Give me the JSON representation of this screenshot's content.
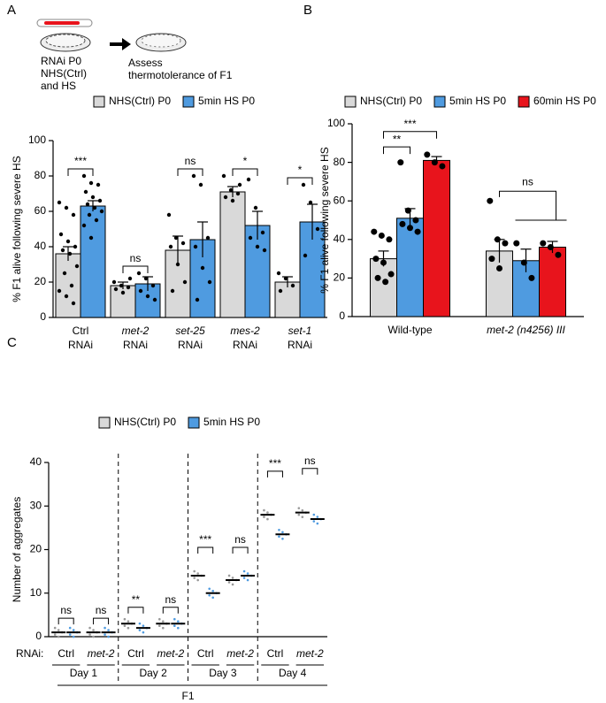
{
  "panel_labels": [
    "A",
    "B",
    "C"
  ],
  "schematic": {
    "step1": [
      "RNAi P0",
      "NHS(Ctrl)",
      "and HS"
    ],
    "step2": [
      "Assess",
      "thermotolerance of F1"
    ]
  },
  "chart_data": [
    {
      "type": "bar",
      "ylabel": "% F1 alive following severe HS",
      "categories": [
        [
          "Ctrl",
          "RNAi"
        ],
        [
          "met-2",
          "RNAi"
        ],
        [
          "set-25",
          "RNAi"
        ],
        [
          "mes-2",
          "RNAi"
        ],
        [
          "set-1",
          "RNAi"
        ]
      ],
      "italic_categories": [
        false,
        true,
        true,
        true,
        true
      ],
      "series": [
        {
          "name": "NHS(Ctrl) P0",
          "color": "#d9d9d9",
          "values": [
            36,
            18,
            38,
            71,
            20
          ],
          "errors": [
            4,
            2,
            8,
            3,
            3
          ],
          "points": [
            [
              65,
              62,
              58,
              47,
              43,
              40,
              38,
              36,
              29,
              25,
              18,
              15,
              12,
              8
            ],
            [
              20,
              18,
              17,
              16,
              14,
              22
            ],
            [
              58,
              45,
              42,
              40,
              30,
              20,
              15
            ],
            [
              80,
              72,
              70,
              68,
              66,
              75
            ],
            [
              25,
              22,
              18,
              15
            ]
          ]
        },
        {
          "name": "5min HS P0",
          "color": "#4f9be0",
          "values": [
            63,
            19,
            44,
            52,
            54
          ],
          "errors": [
            3,
            4,
            10,
            8,
            10
          ],
          "points": [
            [
              80,
              76,
              75,
              71,
              68,
              66,
              64,
              62,
              60,
              58,
              55,
              52,
              45
            ],
            [
              25,
              22,
              18,
              15,
              12,
              10
            ],
            [
              80,
              75,
              45,
              40,
              28,
              20,
              10
            ],
            [
              78,
              62,
              48,
              45,
              40,
              38
            ],
            [
              75,
              65,
              50,
              35
            ]
          ]
        }
      ],
      "ylim": [
        0,
        100
      ],
      "yticks": [
        0,
        20,
        40,
        60,
        80,
        100
      ],
      "significance": [
        "***",
        "ns",
        "ns",
        "*",
        "*"
      ]
    },
    {
      "type": "bar",
      "ylabel": "% F1 alive following severe HS",
      "categories": [
        [
          "Wild-type"
        ],
        [
          "met-2 (n4256) III"
        ]
      ],
      "italic_categories": [
        false,
        true
      ],
      "series": [
        {
          "name": "NHS(Ctrl) P0",
          "color": "#d9d9d9",
          "values": [
            30,
            34
          ],
          "errors": [
            4,
            6
          ],
          "points": [
            [
              44,
              42,
              40,
              30,
              28,
              22,
              20,
              18
            ],
            [
              60,
              40,
              38,
              30,
              25
            ]
          ]
        },
        {
          "name": "5min HS P0",
          "color": "#4f9be0",
          "values": [
            51,
            29
          ],
          "errors": [
            5,
            6
          ],
          "points": [
            [
              80,
              55,
              50,
              48,
              46,
              44
            ],
            [
              38,
              28,
              20
            ]
          ]
        },
        {
          "name": "60min HS P0",
          "color": "#e8141c",
          "values": [
            81,
            36
          ],
          "errors": [
            2,
            3
          ],
          "points": [
            [
              84,
              80,
              78
            ],
            [
              38,
              36,
              32
            ]
          ]
        }
      ],
      "ylim": [
        0,
        100
      ],
      "yticks": [
        0,
        20,
        40,
        60,
        80,
        100
      ],
      "significance": [
        "**",
        "***",
        "ns"
      ]
    },
    {
      "type": "strip",
      "ylabel": "Number of aggregates",
      "x_prefix": "RNAi:",
      "xlabel": "F1",
      "categories": [
        "Ctrl",
        "met-2",
        "Ctrl",
        "met-2",
        "Ctrl",
        "met-2",
        "Ctrl",
        "met-2"
      ],
      "italic_categories": [
        false,
        true,
        false,
        true,
        false,
        true,
        false,
        true
      ],
      "groups": [
        "Day 1",
        "Day 2",
        "Day 3",
        "Day 4"
      ],
      "series": [
        {
          "name": "NHS(Ctrl) P0",
          "color": "#d9d9d9",
          "values": [
            1,
            1,
            3,
            3,
            14,
            13,
            28,
            28.5
          ]
        },
        {
          "name": "5min HS P0",
          "color": "#4f9be0",
          "values": [
            1,
            1,
            2,
            3,
            10,
            14,
            23.5,
            27
          ]
        }
      ],
      "ylim": [
        0,
        40
      ],
      "yticks": [
        0,
        10,
        20,
        30,
        40
      ],
      "significance": [
        "ns",
        "ns",
        "**",
        "ns",
        "***",
        "ns",
        "***",
        "ns"
      ]
    }
  ]
}
